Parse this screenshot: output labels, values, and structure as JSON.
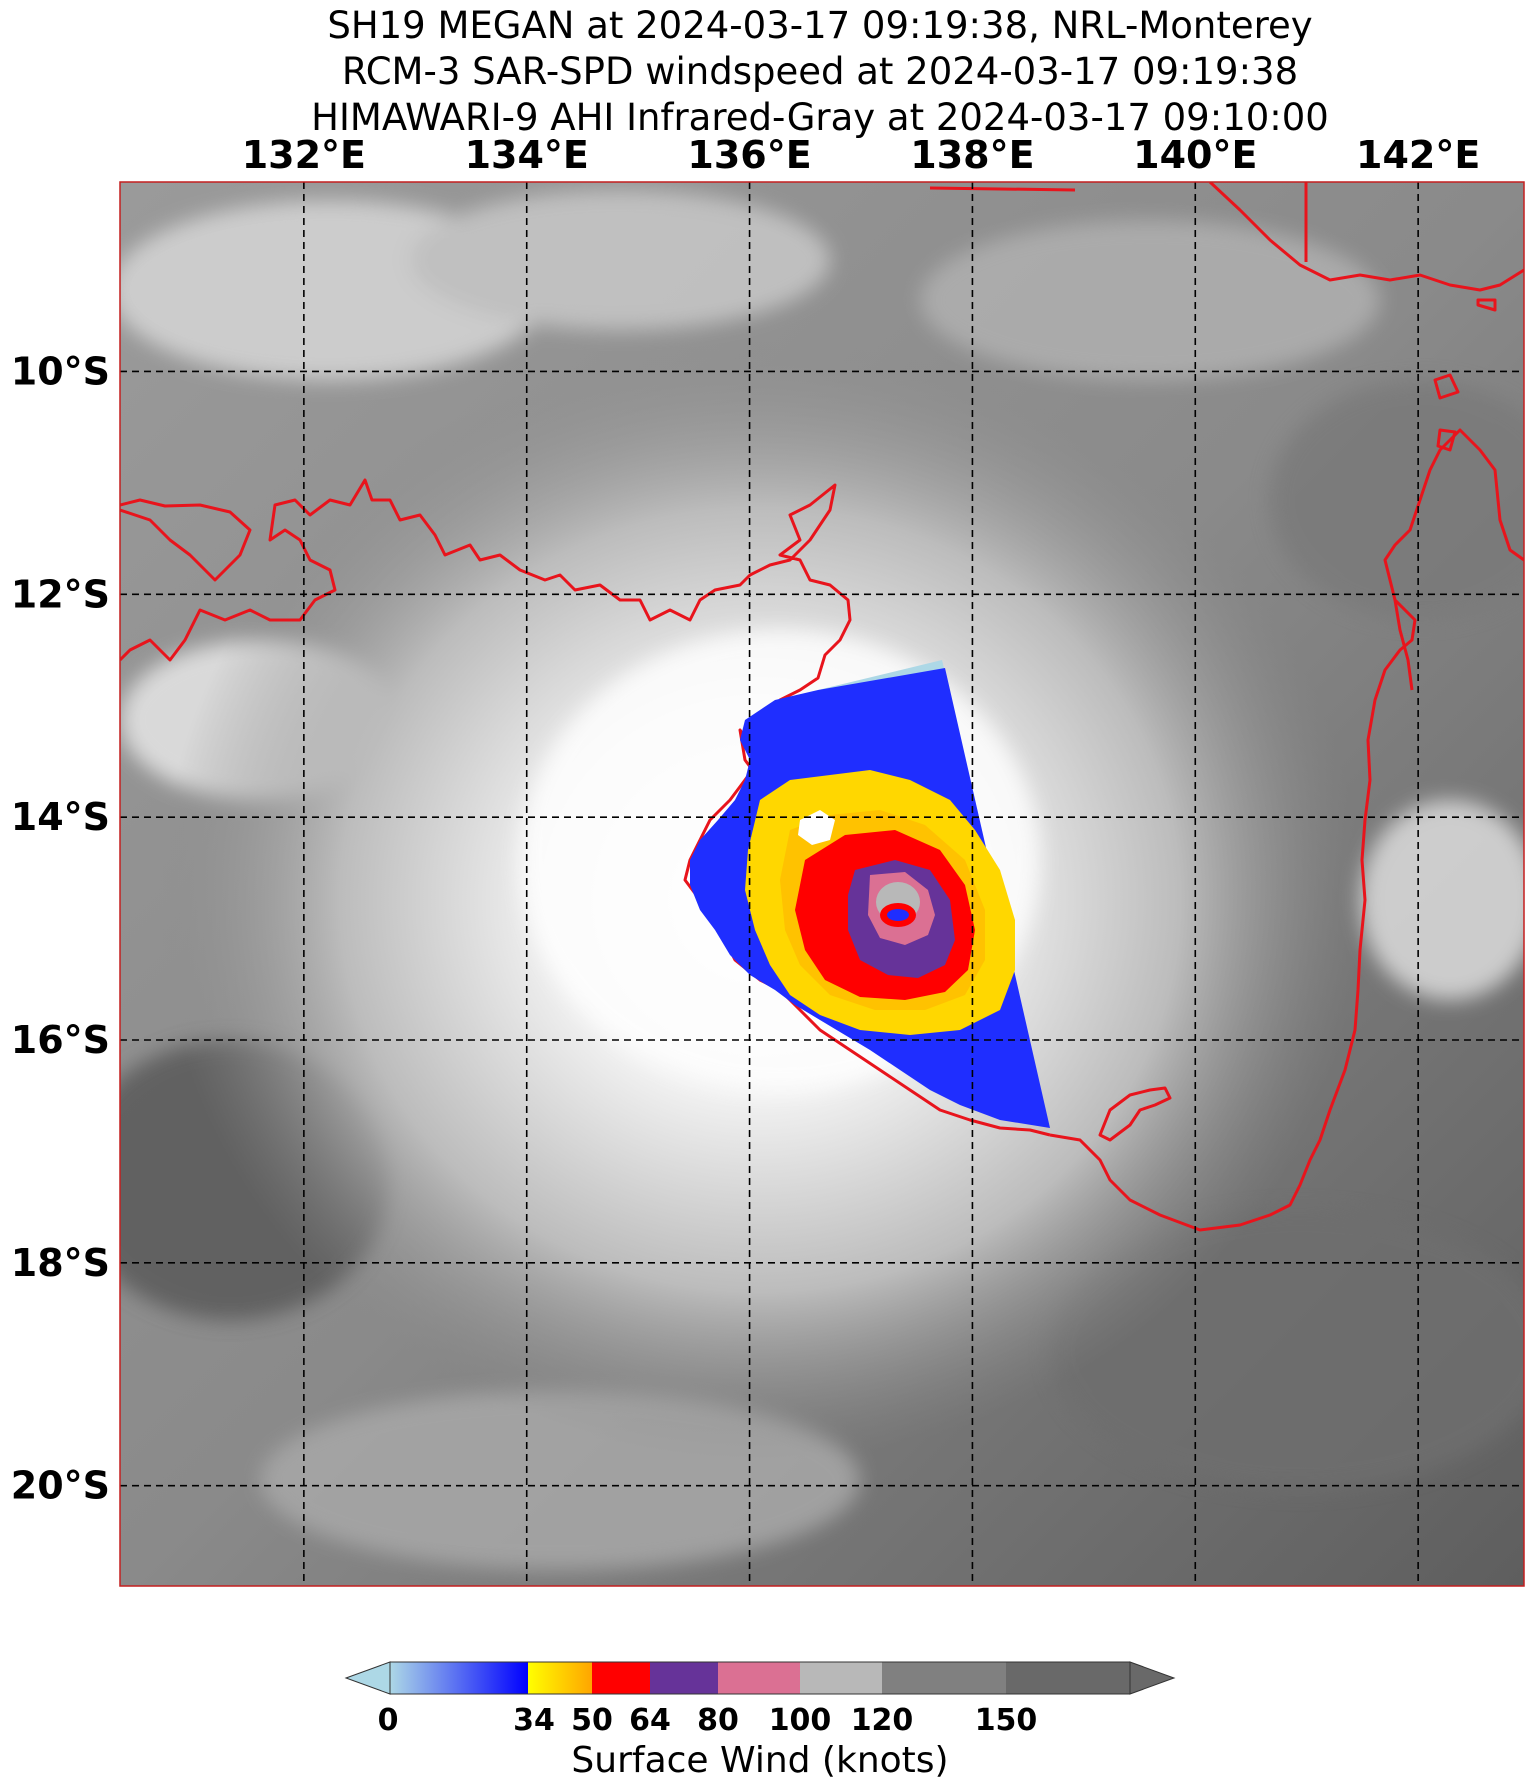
{
  "title": {
    "line1": "SH19 MEGAN at 2024-03-17 09:19:38, NRL-Monterey",
    "line2": "RCM-3 SAR-SPD windspeed at 2024-03-17 09:19:38",
    "line3": "HIMAWARI-9 AHI Infrared-Gray at 2024-03-17 09:10:00"
  },
  "map": {
    "lon_ticks": [
      "132°E",
      "134°E",
      "136°E",
      "138°E",
      "140°E",
      "142°E"
    ],
    "lat_ticks": [
      "10°S",
      "12°S",
      "14°S",
      "16°S",
      "18°S",
      "20°S"
    ],
    "lon_values": [
      132,
      134,
      136,
      138,
      140,
      142
    ],
    "lat_values": [
      -10,
      -12,
      -14,
      -16,
      -18,
      -20
    ],
    "extent": {
      "lon_min": 130.35,
      "lon_max": 142.95,
      "lat_min": -20.9,
      "lat_max": -8.3
    },
    "coastline_color": "#e8141c",
    "storm_center": {
      "lon": 137.32,
      "lat": -14.87
    }
  },
  "colorbar": {
    "title": "Surface Wind (knots)",
    "ticks": [
      "0",
      "34",
      "50",
      "64",
      "80",
      "100",
      "120",
      "150"
    ],
    "tick_values": [
      0,
      34,
      50,
      64,
      80,
      100,
      120,
      150
    ],
    "segments": [
      {
        "from": 0,
        "to": 34,
        "color_start": "#add8e6",
        "color_end": "#0000ff"
      },
      {
        "from": 34,
        "to": 50,
        "color_start": "#ffff00",
        "color_end": "#ffa500"
      },
      {
        "from": 50,
        "to": 64,
        "color": "#ff0000"
      },
      {
        "from": 64,
        "to": 80,
        "color": "#663399"
      },
      {
        "from": 80,
        "to": 100,
        "color": "#db7093"
      },
      {
        "from": 100,
        "to": 120,
        "color": "#b8b8b8"
      },
      {
        "from": 120,
        "to": 150,
        "color": "#808080"
      },
      {
        "from": 150,
        "to": 180,
        "color": "#696969"
      }
    ]
  }
}
